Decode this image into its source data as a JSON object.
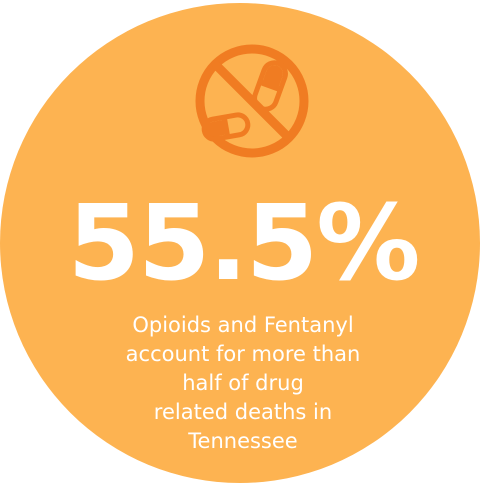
{
  "headline": "55.5%",
  "caption": [
    "Opioids and Fentanyl",
    "account for more than",
    "half of drug",
    "related deaths in",
    "Tennessee"
  ]
}
